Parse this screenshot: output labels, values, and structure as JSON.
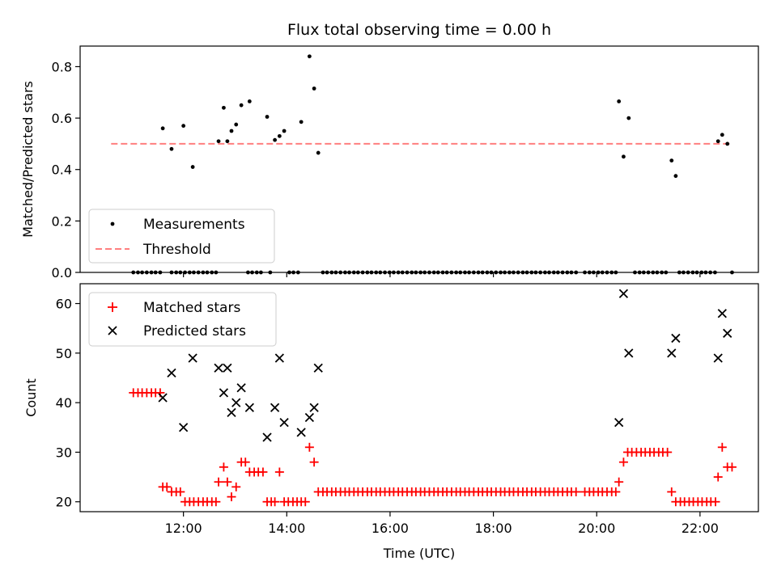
{
  "chart_data": [
    {
      "type": "scatter",
      "title": "Flux total observing time = 0.00 h",
      "xlabel": "",
      "ylabel": "Matched/Predicted stars",
      "xlim": [
        10.0,
        23.13
      ],
      "ylim": [
        0.0,
        0.88
      ],
      "yticks": [
        0.0,
        0.2,
        0.4,
        0.6,
        0.8
      ],
      "ytick_labels": [
        "0.0",
        "0.2",
        "0.4",
        "0.6",
        "0.8"
      ],
      "xticks": [
        12,
        14,
        16,
        18,
        20,
        22
      ],
      "legend": {
        "position": "lower-left",
        "entries": [
          "Measurements",
          "Threshold"
        ]
      },
      "threshold": {
        "name": "Threshold",
        "value": 0.5,
        "x": [
          10.6,
          22.6
        ],
        "color": "#ff7f7f"
      },
      "series": [
        {
          "name": "Measurements",
          "color": "#000000",
          "points": [
            [
              11.6,
              0.56
            ],
            [
              11.77,
              0.48
            ],
            [
              12.0,
              0.57
            ],
            [
              12.18,
              0.41
            ],
            [
              12.68,
              0.51
            ],
            [
              12.78,
              0.64
            ],
            [
              12.85,
              0.51
            ],
            [
              12.93,
              0.55
            ],
            [
              13.02,
              0.575
            ],
            [
              13.12,
              0.65
            ],
            [
              13.28,
              0.665
            ],
            [
              13.62,
              0.605
            ],
            [
              13.77,
              0.515
            ],
            [
              13.86,
              0.53
            ],
            [
              13.95,
              0.55
            ],
            [
              14.28,
              0.585
            ],
            [
              14.44,
              0.84
            ],
            [
              14.53,
              0.715
            ],
            [
              14.61,
              0.465
            ],
            [
              20.43,
              0.665
            ],
            [
              20.52,
              0.45
            ],
            [
              20.62,
              0.6
            ],
            [
              21.45,
              0.435
            ],
            [
              21.53,
              0.375
            ],
            [
              22.35,
              0.51
            ],
            [
              22.43,
              0.535
            ],
            [
              22.53,
              0.5
            ]
          ],
          "zero_points": [
            11.03,
            11.12,
            11.2,
            11.29,
            11.38,
            11.46,
            11.55,
            11.77,
            11.86,
            11.94,
            12.03,
            12.12,
            12.2,
            12.29,
            12.38,
            12.46,
            12.55,
            12.63,
            13.25,
            13.33,
            13.42,
            13.5,
            13.68,
            14.05,
            14.13,
            14.22,
            14.7,
            14.78,
            14.87,
            14.95,
            15.04,
            15.13,
            15.21,
            15.3,
            15.38,
            15.47,
            15.56,
            15.64,
            15.73,
            15.81,
            15.9,
            15.99,
            16.07,
            16.16,
            16.24,
            16.33,
            16.42,
            16.5,
            16.59,
            16.67,
            16.76,
            16.85,
            16.93,
            17.02,
            17.1,
            17.19,
            17.28,
            17.36,
            17.45,
            17.53,
            17.62,
            17.71,
            17.79,
            17.88,
            17.96,
            18.05,
            18.14,
            18.22,
            18.31,
            18.39,
            18.48,
            18.57,
            18.65,
            18.74,
            18.82,
            18.91,
            19.0,
            19.08,
            19.17,
            19.25,
            19.34,
            19.43,
            19.51,
            19.6,
            19.77,
            19.86,
            19.94,
            20.03,
            20.11,
            20.2,
            20.29,
            20.37,
            20.74,
            20.83,
            20.91,
            21.0,
            21.09,
            21.17,
            21.26,
            21.34,
            21.6,
            21.68,
            21.77,
            21.86,
            21.94,
            22.03,
            22.11,
            22.2,
            22.29,
            22.62
          ]
        }
      ]
    },
    {
      "type": "scatter",
      "title": "",
      "xlabel": "Time (UTC)",
      "ylabel": "Count",
      "xlim": [
        10.0,
        23.13
      ],
      "ylim": [
        18.0,
        64.0
      ],
      "yticks": [
        20,
        30,
        40,
        50,
        60
      ],
      "ytick_labels": [
        "20",
        "30",
        "40",
        "50",
        "60"
      ],
      "xticks": [
        12,
        14,
        16,
        18,
        20,
        22
      ],
      "xtick_labels": [
        "12:00",
        "14:00",
        "16:00",
        "18:00",
        "20:00",
        "22:00"
      ],
      "legend": {
        "position": "top-left",
        "entries": [
          "Matched stars",
          "Predicted stars"
        ]
      },
      "series": [
        {
          "name": "Matched stars",
          "marker": "plus",
          "color": "#ff0000",
          "points": [
            [
              11.03,
              42
            ],
            [
              11.12,
              42
            ],
            [
              11.2,
              42
            ],
            [
              11.29,
              42
            ],
            [
              11.38,
              42
            ],
            [
              11.46,
              42
            ],
            [
              11.55,
              42
            ],
            [
              11.6,
              23
            ],
            [
              11.68,
              23
            ],
            [
              11.77,
              22
            ],
            [
              11.86,
              22
            ],
            [
              11.94,
              22
            ],
            [
              12.03,
              20
            ],
            [
              12.12,
              20
            ],
            [
              12.2,
              20
            ],
            [
              12.29,
              20
            ],
            [
              12.38,
              20
            ],
            [
              12.46,
              20
            ],
            [
              12.55,
              20
            ],
            [
              12.63,
              20
            ],
            [
              12.68,
              24
            ],
            [
              12.78,
              27
            ],
            [
              12.85,
              24
            ],
            [
              12.93,
              21
            ],
            [
              13.02,
              23
            ],
            [
              13.12,
              28
            ],
            [
              13.2,
              28
            ],
            [
              13.28,
              26
            ],
            [
              13.37,
              26
            ],
            [
              13.45,
              26
            ],
            [
              13.54,
              26
            ],
            [
              13.62,
              20
            ],
            [
              13.7,
              20
            ],
            [
              13.77,
              20
            ],
            [
              13.86,
              26
            ],
            [
              13.95,
              20
            ],
            [
              14.03,
              20
            ],
            [
              14.12,
              20
            ],
            [
              14.2,
              20
            ],
            [
              14.28,
              20
            ],
            [
              14.36,
              20
            ],
            [
              14.44,
              31
            ],
            [
              14.53,
              28
            ],
            [
              14.61,
              22
            ],
            [
              14.7,
              22
            ],
            [
              14.78,
              22
            ],
            [
              14.87,
              22
            ],
            [
              14.95,
              22
            ],
            [
              15.04,
              22
            ],
            [
              15.13,
              22
            ],
            [
              15.21,
              22
            ],
            [
              15.3,
              22
            ],
            [
              15.38,
              22
            ],
            [
              15.47,
              22
            ],
            [
              15.56,
              22
            ],
            [
              15.64,
              22
            ],
            [
              15.73,
              22
            ],
            [
              15.81,
              22
            ],
            [
              15.9,
              22
            ],
            [
              15.99,
              22
            ],
            [
              16.07,
              22
            ],
            [
              16.16,
              22
            ],
            [
              16.24,
              22
            ],
            [
              16.33,
              22
            ],
            [
              16.42,
              22
            ],
            [
              16.5,
              22
            ],
            [
              16.59,
              22
            ],
            [
              16.67,
              22
            ],
            [
              16.76,
              22
            ],
            [
              16.85,
              22
            ],
            [
              16.93,
              22
            ],
            [
              17.02,
              22
            ],
            [
              17.1,
              22
            ],
            [
              17.19,
              22
            ],
            [
              17.28,
              22
            ],
            [
              17.36,
              22
            ],
            [
              17.45,
              22
            ],
            [
              17.53,
              22
            ],
            [
              17.62,
              22
            ],
            [
              17.71,
              22
            ],
            [
              17.79,
              22
            ],
            [
              17.88,
              22
            ],
            [
              17.96,
              22
            ],
            [
              18.05,
              22
            ],
            [
              18.14,
              22
            ],
            [
              18.22,
              22
            ],
            [
              18.31,
              22
            ],
            [
              18.39,
              22
            ],
            [
              18.48,
              22
            ],
            [
              18.57,
              22
            ],
            [
              18.65,
              22
            ],
            [
              18.74,
              22
            ],
            [
              18.82,
              22
            ],
            [
              18.91,
              22
            ],
            [
              19.0,
              22
            ],
            [
              19.08,
              22
            ],
            [
              19.17,
              22
            ],
            [
              19.25,
              22
            ],
            [
              19.34,
              22
            ],
            [
              19.43,
              22
            ],
            [
              19.51,
              22
            ],
            [
              19.6,
              22
            ],
            [
              19.77,
              22
            ],
            [
              19.86,
              22
            ],
            [
              19.94,
              22
            ],
            [
              20.03,
              22
            ],
            [
              20.11,
              22
            ],
            [
              20.2,
              22
            ],
            [
              20.29,
              22
            ],
            [
              20.37,
              22
            ],
            [
              20.43,
              24
            ],
            [
              20.52,
              28
            ],
            [
              20.6,
              30
            ],
            [
              20.68,
              30
            ],
            [
              20.77,
              30
            ],
            [
              20.86,
              30
            ],
            [
              20.94,
              30
            ],
            [
              21.03,
              30
            ],
            [
              21.11,
              30
            ],
            [
              21.2,
              30
            ],
            [
              21.28,
              30
            ],
            [
              21.37,
              30
            ],
            [
              21.45,
              22
            ],
            [
              21.53,
              20
            ],
            [
              21.62,
              20
            ],
            [
              21.7,
              20
            ],
            [
              21.79,
              20
            ],
            [
              21.87,
              20
            ],
            [
              21.96,
              20
            ],
            [
              22.04,
              20
            ],
            [
              22.13,
              20
            ],
            [
              22.21,
              20
            ],
            [
              22.3,
              20
            ],
            [
              22.35,
              25
            ],
            [
              22.43,
              31
            ],
            [
              22.53,
              27
            ],
            [
              22.62,
              27
            ]
          ]
        },
        {
          "name": "Predicted stars",
          "marker": "x",
          "color": "#000000",
          "points": [
            [
              11.6,
              41
            ],
            [
              11.77,
              46
            ],
            [
              12.0,
              35
            ],
            [
              12.18,
              49
            ],
            [
              12.68,
              47
            ],
            [
              12.78,
              42
            ],
            [
              12.85,
              47
            ],
            [
              12.93,
              38
            ],
            [
              13.02,
              40
            ],
            [
              13.12,
              43
            ],
            [
              13.28,
              39
            ],
            [
              13.62,
              33
            ],
            [
              13.77,
              39
            ],
            [
              13.86,
              49
            ],
            [
              13.95,
              36
            ],
            [
              14.28,
              34
            ],
            [
              14.44,
              37
            ],
            [
              14.53,
              39
            ],
            [
              14.61,
              47
            ],
            [
              20.43,
              36
            ],
            [
              20.52,
              62
            ],
            [
              20.62,
              50
            ],
            [
              21.45,
              50
            ],
            [
              21.53,
              53
            ],
            [
              22.35,
              49
            ],
            [
              22.43,
              58
            ],
            [
              22.53,
              54
            ]
          ]
        }
      ]
    }
  ]
}
